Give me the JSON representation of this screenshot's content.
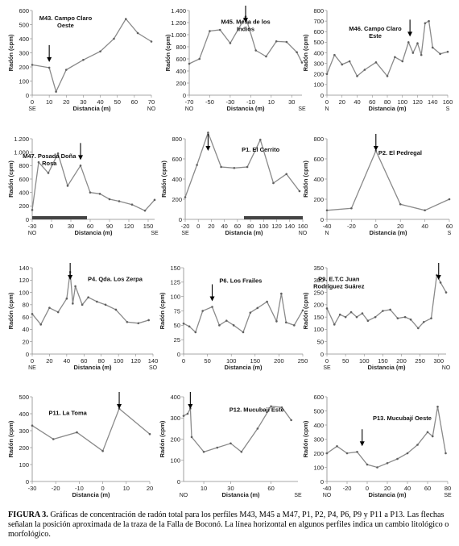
{
  "caption": {
    "label": "FIGURA 3.",
    "text": "Gráficas de concentración de radón total para los perfiles M43, M45 a M47, P1, P2, P4, P6, P9 y P11 a P13. Las flechas señalan la posición aproximada de la traza de la Falla de Boconó. La línea horizontal en algunos perfiles indica un cambio litológico o morfológico."
  },
  "colors": {
    "line": "#8a8a8a",
    "marker": "#606060",
    "axis": "#8a8a8a",
    "arrow": "#000000",
    "bar": "#444444"
  },
  "chart_data": [
    {
      "type": "line",
      "title": "M43. Campo Claro Oeste",
      "xlabel": "Distancia (m)",
      "ylabel": "Radón (cpm)",
      "xlim": [
        0,
        70
      ],
      "ylim": [
        0,
        600
      ],
      "xticks": [
        0,
        10,
        20,
        30,
        40,
        50,
        60,
        70
      ],
      "yticks": [
        0,
        100,
        200,
        300,
        400,
        500,
        600
      ],
      "x_ends": [
        "SE",
        "NO"
      ],
      "arrow_x": 10,
      "x": [
        0,
        10,
        14,
        20,
        30,
        40,
        48,
        55,
        62,
        70
      ],
      "y": [
        215,
        195,
        25,
        180,
        250,
        310,
        400,
        540,
        440,
        380
      ]
    },
    {
      "type": "line",
      "title": "M45. Mesa de los Indios",
      "xlabel": "Distancia (m)",
      "ylabel": "Radón (cpm)",
      "xlim": [
        -70,
        40
      ],
      "ylim": [
        0,
        1400
      ],
      "xticks": [
        -70,
        -50,
        -30,
        -10,
        10,
        30
      ],
      "yticks": [
        0,
        200,
        400,
        600,
        800,
        1000,
        1200,
        1400
      ],
      "tick_labels_y": [
        "0",
        "200",
        "400",
        "600",
        "800",
        "1.000",
        "1.200",
        "1.400"
      ],
      "x_ends": [
        "NO",
        "SE"
      ],
      "arrow_x": -15,
      "x": [
        -70,
        -60,
        -50,
        -40,
        -30,
        -15,
        -5,
        5,
        15,
        25,
        35,
        40
      ],
      "y": [
        520,
        600,
        1060,
        1080,
        860,
        1300,
        740,
        640,
        890,
        880,
        710,
        540
      ]
    },
    {
      "type": "line",
      "title": "M46. Campo Claro Este",
      "xlabel": "Distancia (m)",
      "ylabel": "Radón (cpm)",
      "xlim": [
        0,
        160
      ],
      "ylim": [
        0,
        800
      ],
      "xticks": [
        0,
        20,
        40,
        60,
        80,
        100,
        120,
        140,
        160
      ],
      "yticks": [
        0,
        100,
        200,
        300,
        400,
        500,
        600,
        700,
        800
      ],
      "x_ends": [
        "N",
        "S"
      ],
      "arrow_x": 110,
      "x": [
        0,
        10,
        20,
        30,
        40,
        50,
        65,
        80,
        90,
        100,
        108,
        114,
        120,
        125,
        130,
        135,
        140,
        150,
        160
      ],
      "y": [
        200,
        380,
        290,
        320,
        180,
        240,
        310,
        180,
        360,
        320,
        500,
        400,
        490,
        380,
        680,
        700,
        450,
        390,
        410
      ]
    },
    {
      "type": "line",
      "title": "M47. Posada Doña Rosa",
      "xlabel": "Distancia (m)",
      "ylabel": "Radón (cpm)",
      "xlim": [
        -30,
        160
      ],
      "ylim": [
        0,
        1200
      ],
      "xticks": [
        -30,
        0,
        30,
        60,
        90,
        120,
        150
      ],
      "yticks": [
        0,
        200,
        400,
        600,
        800,
        1000,
        1200
      ],
      "tick_labels_y": [
        "0",
        "200",
        "400",
        "600",
        "800",
        "1.000",
        "1.200"
      ],
      "x_ends": [
        "NO",
        "SE"
      ],
      "arrow_x": 45,
      "bar_x": [
        -30,
        55
      ],
      "x": [
        -30,
        -20,
        -5,
        10,
        25,
        45,
        60,
        75,
        90,
        105,
        125,
        145,
        160
      ],
      "y": [
        140,
        850,
        690,
        980,
        500,
        800,
        400,
        380,
        300,
        270,
        220,
        130,
        290
      ]
    },
    {
      "type": "line",
      "title": "P1. El Cerrito",
      "xlabel": "Distancia (m)",
      "ylabel": "Radón (cpm)",
      "xlim": [
        -20,
        160
      ],
      "ylim": [
        0,
        800
      ],
      "xticks": [
        -20,
        0,
        20,
        40,
        60,
        80,
        100,
        120,
        140,
        160
      ],
      "yticks": [
        0,
        200,
        400,
        600,
        800
      ],
      "x_ends": [
        "SE",
        "NO"
      ],
      "arrow_x": 15,
      "bar_x": [
        70,
        160
      ],
      "x": [
        -20,
        -2,
        15,
        35,
        55,
        75,
        95,
        115,
        135,
        155
      ],
      "y": [
        220,
        540,
        860,
        520,
        510,
        520,
        790,
        360,
        450,
        280
      ]
    },
    {
      "type": "line",
      "title": "P2. El Pedregal",
      "xlabel": "Distancia (m)",
      "ylabel": "Radón (cpm)",
      "xlim": [
        -40,
        60
      ],
      "ylim": [
        0,
        800
      ],
      "xticks": [
        -40,
        -20,
        0,
        20,
        40,
        60
      ],
      "yticks": [
        0,
        200,
        400,
        600,
        800
      ],
      "x_ends": [
        "N",
        "S"
      ],
      "arrow_x": 0,
      "x": [
        -40,
        -20,
        0,
        20,
        40,
        60
      ],
      "y": [
        90,
        110,
        680,
        150,
        90,
        200
      ]
    },
    {
      "type": "line",
      "title": "P4. Qda. Los Zerpa",
      "xlabel": "Distancia (m)",
      "ylabel": "Radón (cpm)",
      "xlim": [
        0,
        140
      ],
      "ylim": [
        0,
        140
      ],
      "xticks": [
        0,
        20,
        40,
        60,
        80,
        100,
        120,
        140
      ],
      "yticks": [
        0,
        20,
        40,
        60,
        80,
        100,
        120,
        140
      ],
      "x_ends": [
        "NE",
        "SO"
      ],
      "arrow_x": 44,
      "x": [
        0,
        10,
        20,
        30,
        40,
        44,
        47,
        50,
        58,
        65,
        75,
        85,
        97,
        110,
        123,
        135
      ],
      "y": [
        65,
        48,
        75,
        68,
        90,
        133,
        82,
        110,
        80,
        92,
        85,
        80,
        72,
        52,
        50,
        55
      ]
    },
    {
      "type": "line",
      "title": "P6. Los Frailes",
      "xlabel": "Distancia (m)",
      "ylabel": "Radón (cpm)",
      "xlim": [
        0,
        250
      ],
      "ylim": [
        0,
        150
      ],
      "xticks": [
        0,
        50,
        100,
        150,
        200,
        250
      ],
      "yticks": [
        0,
        25,
        50,
        75,
        100,
        125,
        150
      ],
      "arrow_x": 60,
      "x": [
        0,
        12,
        25,
        40,
        60,
        75,
        90,
        105,
        125,
        140,
        155,
        175,
        195,
        205,
        215,
        232,
        250
      ],
      "y": [
        53,
        48,
        38,
        75,
        82,
        50,
        58,
        50,
        38,
        72,
        80,
        91,
        57,
        105,
        55,
        50,
        76
      ]
    },
    {
      "type": "line",
      "title": "P9. E.T.C Juan Rodríguez Suárez",
      "xlabel": "Distancia (m)",
      "ylabel": "Radón (cpm)",
      "xlim": [
        0,
        320
      ],
      "ylim": [
        0,
        350
      ],
      "xticks": [
        0,
        50,
        100,
        150,
        200,
        250,
        300
      ],
      "yticks": [
        0,
        50,
        100,
        150,
        200,
        250,
        300,
        350
      ],
      "x_ends": [
        "SE",
        "NO"
      ],
      "arrow_x": 300,
      "x": [
        0,
        20,
        35,
        50,
        65,
        80,
        95,
        110,
        130,
        150,
        170,
        190,
        210,
        225,
        245,
        260,
        280,
        295,
        305,
        320
      ],
      "y": [
        185,
        120,
        160,
        150,
        170,
        150,
        165,
        135,
        150,
        175,
        180,
        145,
        150,
        140,
        105,
        130,
        145,
        320,
        290,
        250
      ]
    },
    {
      "type": "line",
      "title": "P11. La Toma",
      "xlabel": "Distancia (m)",
      "ylabel": "Radón (cpm)",
      "xlim": [
        -30,
        20
      ],
      "ylim": [
        0,
        500
      ],
      "xticks": [
        -30,
        -20,
        -10,
        0,
        10,
        20
      ],
      "yticks": [
        0,
        100,
        200,
        300,
        400,
        500
      ],
      "arrow_x": 7,
      "x": [
        -30,
        -21,
        -11,
        0,
        7,
        20
      ],
      "y": [
        330,
        250,
        290,
        180,
        430,
        280
      ]
    },
    {
      "type": "line",
      "title": "P12. Mucubají Este",
      "xlabel": "Distancia (m)",
      "ylabel": "Radón (cpm)",
      "xlim": [
        -5,
        80
      ],
      "ylim": [
        0,
        400
      ],
      "xticks": [
        10,
        30,
        60
      ],
      "yticks": [
        0,
        100,
        200,
        300,
        400
      ],
      "x_ends": [
        "NO",
        "SE"
      ],
      "arrow_x": 0,
      "x": [
        -5,
        -2,
        0,
        1,
        10,
        20,
        30,
        38,
        50,
        60,
        68,
        75
      ],
      "y": [
        310,
        320,
        345,
        210,
        140,
        160,
        180,
        140,
        250,
        355,
        350,
        290
      ]
    },
    {
      "type": "line",
      "title": "P13. Mucubají Oeste",
      "xlabel": "Distancia (m)",
      "ylabel": "Radón (cpm)",
      "xlim": [
        -40,
        80
      ],
      "ylim": [
        0,
        600
      ],
      "xticks": [
        -40,
        -20,
        0,
        20,
        40,
        60,
        80
      ],
      "yticks": [
        0,
        100,
        200,
        300,
        400,
        500,
        600
      ],
      "x_ends": [
        "NO",
        "SE"
      ],
      "arrow_x": -5,
      "x": [
        -40,
        -30,
        -20,
        -10,
        0,
        10,
        20,
        30,
        40,
        50,
        60,
        65,
        70,
        78
      ],
      "y": [
        200,
        250,
        200,
        210,
        120,
        100,
        130,
        160,
        200,
        260,
        350,
        320,
        530,
        200
      ]
    }
  ]
}
